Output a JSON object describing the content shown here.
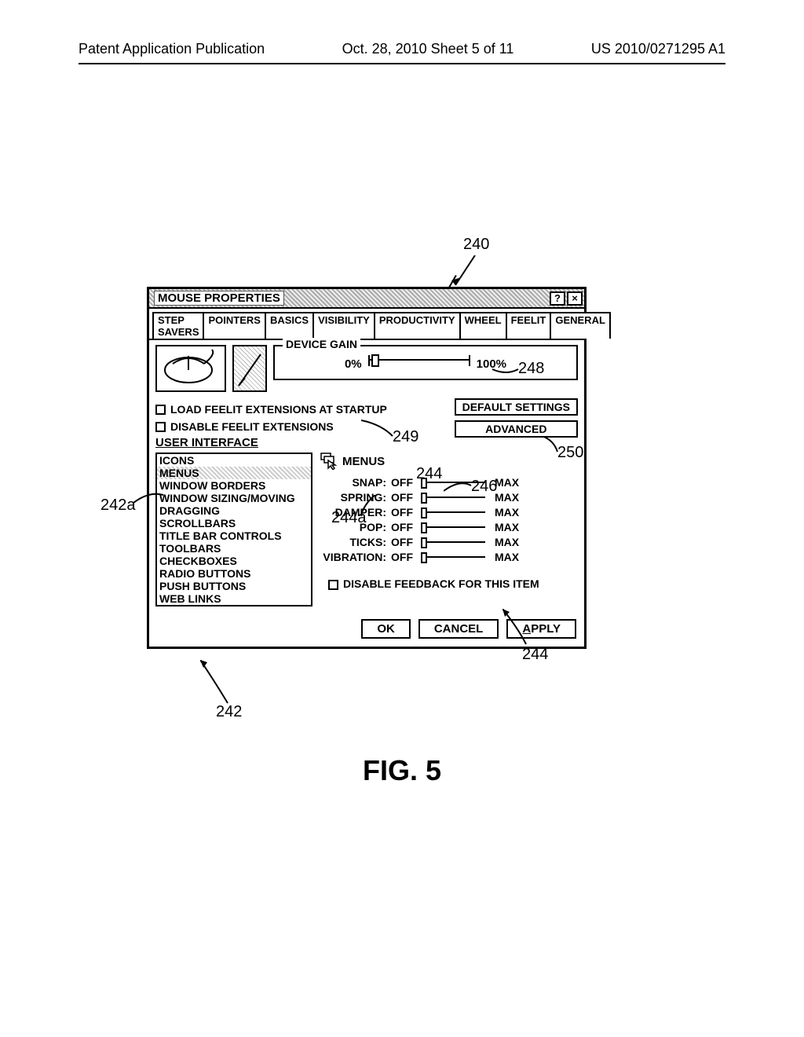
{
  "page_header": {
    "left": "Patent Application Publication",
    "mid": "Oct. 28, 2010  Sheet 5 of 11",
    "right": "US 2010/0271295 A1"
  },
  "figure_label": "FIG. 5",
  "dialog": {
    "title": "MOUSE PROPERTIES",
    "help_btn": "?",
    "close_btn": "×",
    "tabs": [
      "STEP SAVERS",
      "POINTERS",
      "BASICS",
      "VISIBILITY",
      "PRODUCTIVITY",
      "WHEEL",
      "FEELIT",
      "GENERAL"
    ],
    "selected_tab": 6,
    "device_gain": {
      "legend": "DEVICE GAIN",
      "min": "0%",
      "max": "100%"
    },
    "chk_load": "LOAD FEELIT EXTENSIONS AT STARTUP",
    "chk_disable": "DISABLE FEELIT EXTENSIONS",
    "user_interface_label": "USER INTERFACE",
    "btn_default": "DEFAULT SETTINGS",
    "btn_advanced": "ADVANCED",
    "list_items": [
      "ICONS",
      "MENUS",
      "WINDOW BORDERS",
      "WINDOW SIZING/MOVING",
      "DRAGGING",
      "SCROLLBARS",
      "TITLE BAR CONTROLS",
      "TOOLBARS",
      "CHECKBOXES",
      "RADIO BUTTONS",
      "PUSH BUTTONS",
      "WEB LINKS"
    ],
    "list_selected_index": 1,
    "detail_title": "MENUS",
    "sliders": [
      {
        "label": "SNAP:",
        "state": "OFF",
        "max": "MAX"
      },
      {
        "label": "SPRING:",
        "state": "OFF",
        "max": "MAX"
      },
      {
        "label": "DAMPER:",
        "state": "OFF",
        "max": "MAX"
      },
      {
        "label": "POP:",
        "state": "OFF",
        "max": "MAX"
      },
      {
        "label": "TICKS:",
        "state": "OFF",
        "max": "MAX"
      },
      {
        "label": "VIBRATION:",
        "state": "OFF",
        "max": "MAX"
      }
    ],
    "chk_disable_item": "DISABLE FEEDBACK FOR THIS ITEM",
    "ok": "OK",
    "cancel": "CANCEL",
    "apply": "APPLY",
    "apply_underline_index": 0
  },
  "annotations": {
    "a240": "240",
    "a248": "248",
    "a249": "249",
    "a250": "250",
    "a242a": "242a",
    "a244": "244",
    "a244a": "244a",
    "a246": "246",
    "a244b": "244",
    "a242": "242"
  },
  "styling": {
    "stroke": "#000000",
    "bg": "#ffffff",
    "font": "Arial Narrow",
    "title_fontsize": 15,
    "tab_fontsize": 13,
    "body_fontsize": 15,
    "label_fontsize": 14,
    "annot_fontsize": 20,
    "fig_fontsize": 36
  }
}
